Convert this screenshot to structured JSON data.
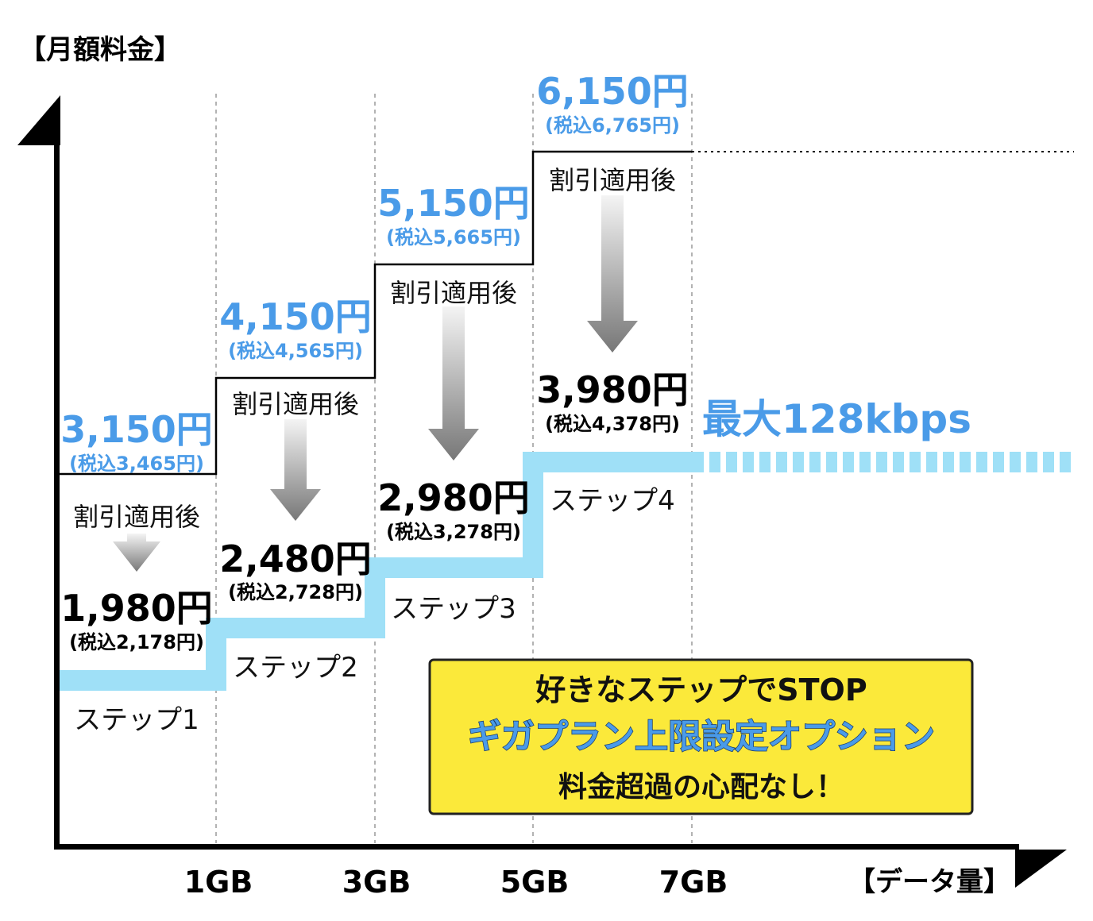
{
  "chart_data": {
    "type": "step",
    "ylabel": "【月額料金】",
    "xlabel": "【データ量】",
    "x_ticks": [
      "1GB",
      "3GB",
      "5GB",
      "7GB"
    ],
    "discount_label": "割引適用後",
    "steps": [
      {
        "step_label": "ステップ1",
        "range_gb": [
          0,
          1
        ],
        "regular_price": "3,150円",
        "regular_tax": "(税込3,465円)",
        "discounted_price": "1,980円",
        "discounted_tax": "(税込2,178円)"
      },
      {
        "step_label": "ステップ2",
        "range_gb": [
          1,
          3
        ],
        "regular_price": "4,150円",
        "regular_tax": "(税込4,565円)",
        "discounted_price": "2,480円",
        "discounted_tax": "(税込2,728円)"
      },
      {
        "step_label": "ステップ3",
        "range_gb": [
          3,
          5
        ],
        "regular_price": "5,150円",
        "regular_tax": "(税込5,665円)",
        "discounted_price": "2,980円",
        "discounted_tax": "(税込3,278円)"
      },
      {
        "step_label": "ステップ4",
        "range_gb": [
          5,
          7
        ],
        "regular_price": "6,150円",
        "regular_tax": "(税込6,765円)",
        "discounted_price": "3,980円",
        "discounted_tax": "(税込4,378円)"
      }
    ],
    "beyond_label": "最大128kbps",
    "callout": {
      "line1": "好きなステップでSTOP",
      "line2": "ギガプラン上限設定オプション",
      "line3": "料金超過の心配なし！"
    },
    "colors": {
      "regular_price": "#4a9be8",
      "discounted_line": "#9fe0f7",
      "axis": "#000000",
      "callout_bg": "#fbe93a",
      "callout_title": "#4a9be8"
    }
  }
}
